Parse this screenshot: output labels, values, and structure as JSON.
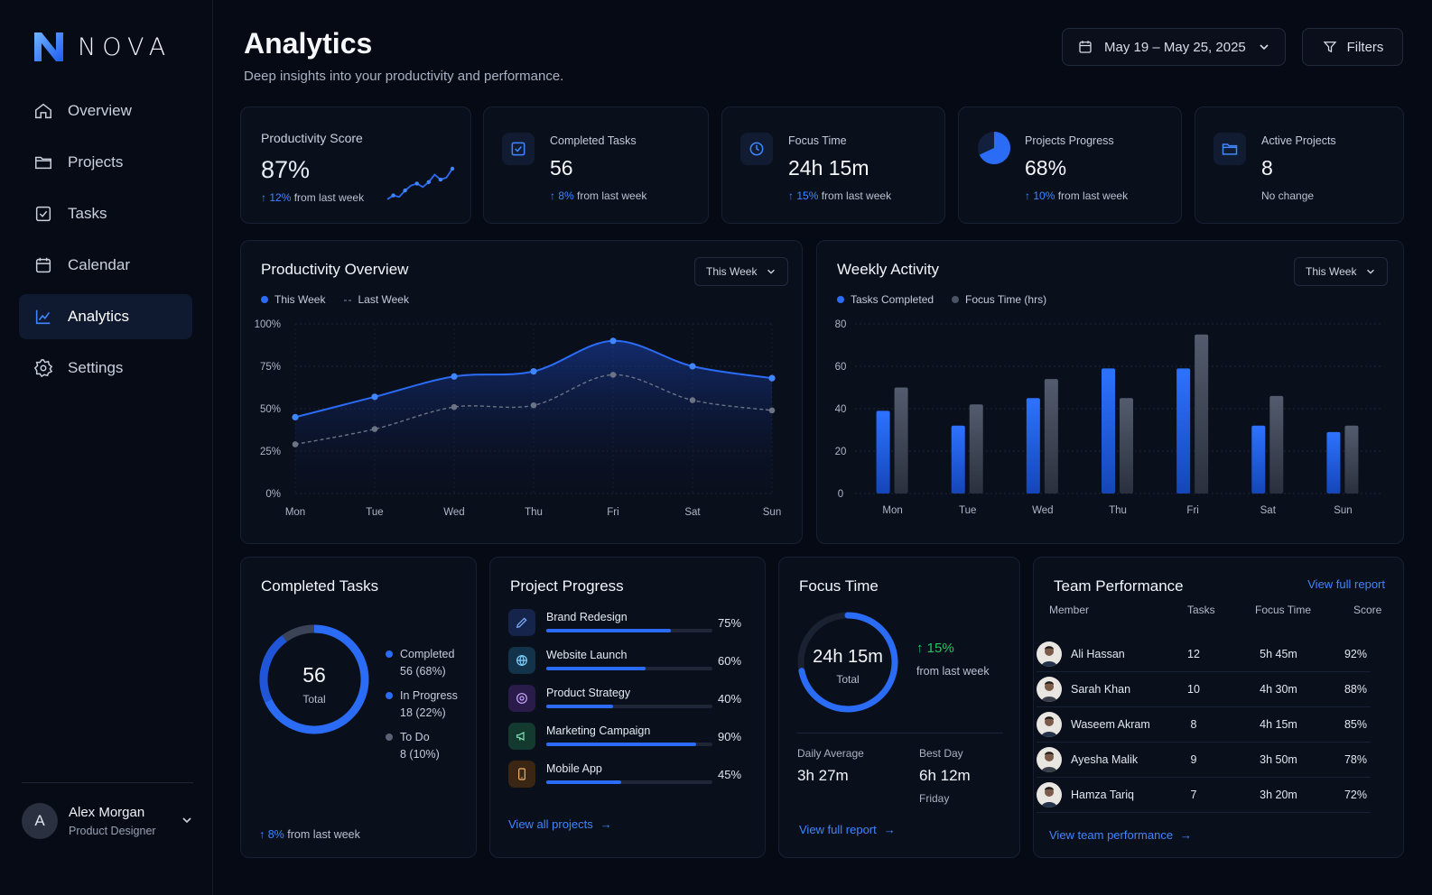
{
  "brand": {
    "name": "NOVA"
  },
  "nav": [
    {
      "label": "Overview",
      "icon": "home-icon"
    },
    {
      "label": "Projects",
      "icon": "folder-icon"
    },
    {
      "label": "Tasks",
      "icon": "checkbox-icon"
    },
    {
      "label": "Calendar",
      "icon": "calendar-icon"
    },
    {
      "label": "Analytics",
      "icon": "chart-line-icon",
      "active": true
    },
    {
      "label": "Settings",
      "icon": "gear-icon"
    }
  ],
  "user": {
    "initial": "A",
    "name": "Alex Morgan",
    "role": "Product Designer"
  },
  "header": {
    "title": "Analytics",
    "subtitle": "Deep insights into your productivity and performance.",
    "date_range": "May 19 – May 25, 2025",
    "filters_label": "Filters"
  },
  "kpis": [
    {
      "label": "Productivity Score",
      "value": "87%",
      "delta": "12%",
      "delta_text": "from last week",
      "sparkline": [
        20,
        28,
        25,
        38,
        48,
        52,
        45,
        55,
        70,
        60,
        64,
        82
      ]
    },
    {
      "label": "Completed Tasks",
      "value": "56",
      "delta": "8%",
      "delta_text": "from last week",
      "icon": "checkbox-icon"
    },
    {
      "label": "Focus Time",
      "value": "24h 15m",
      "delta": "15%",
      "delta_text": "from last week",
      "icon": "clock-icon"
    },
    {
      "label": "Projects Progress",
      "value": "68%",
      "delta": "10%",
      "delta_text": "from last week",
      "icon": "pie-icon",
      "progress": 0.68
    },
    {
      "label": "Active Projects",
      "value": "8",
      "note": "No change",
      "icon": "folder-icon"
    }
  ],
  "productivity_overview": {
    "title": "Productivity Overview",
    "selector": "This Week",
    "legend": [
      "This Week",
      "Last Week"
    ]
  },
  "weekly_activity": {
    "title": "Weekly Activity",
    "selector": "This Week",
    "legend": [
      "Tasks Completed",
      "Focus Time (hrs)"
    ]
  },
  "chart_data": [
    {
      "type": "line",
      "title": "Productivity Overview",
      "categories": [
        "Mon",
        "Tue",
        "Wed",
        "Thu",
        "Fri",
        "Sat",
        "Sun"
      ],
      "series": [
        {
          "name": "This Week",
          "values": [
            45,
            57,
            69,
            72,
            90,
            75,
            68
          ]
        },
        {
          "name": "Last Week",
          "values": [
            29,
            38,
            51,
            52,
            70,
            55,
            49
          ]
        }
      ],
      "ylim": [
        0,
        100
      ],
      "yticks": [
        "0%",
        "25%",
        "50%",
        "75%",
        "100%"
      ],
      "grid": true
    },
    {
      "type": "bar",
      "title": "Weekly Activity",
      "categories": [
        "Mon",
        "Tue",
        "Wed",
        "Thu",
        "Fri",
        "Sat",
        "Sun"
      ],
      "series": [
        {
          "name": "Tasks Completed",
          "values": [
            39,
            32,
            45,
            59,
            59,
            32,
            29
          ]
        },
        {
          "name": "Focus Time (hrs)",
          "values": [
            50,
            42,
            54,
            45,
            75,
            46,
            32
          ]
        }
      ],
      "ylim": [
        0,
        80
      ],
      "yticks": [
        "0",
        "20",
        "40",
        "60",
        "80"
      ],
      "grid": true
    },
    {
      "type": "pie",
      "title": "Completed Tasks",
      "center_value": "56",
      "center_label": "Total",
      "slices": [
        {
          "name": "Completed",
          "value": 68,
          "detail": "56 (68%)"
        },
        {
          "name": "In Progress",
          "value": 22,
          "detail": "18 (22%)"
        },
        {
          "name": "To Do",
          "value": 10,
          "detail": "8 (10%)"
        }
      ]
    }
  ],
  "completed_tasks": {
    "title": "Completed Tasks",
    "center_value": "56",
    "center_label": "Total",
    "legend": [
      {
        "name": "Completed",
        "detail": "56 (68%)"
      },
      {
        "name": "In Progress",
        "detail": "18 (22%)"
      },
      {
        "name": "To Do",
        "detail": "8 (10%)"
      }
    ],
    "delta": "8%",
    "delta_text": "from last week"
  },
  "project_progress": {
    "title": "Project Progress",
    "projects": [
      {
        "name": "Brand Redesign",
        "pct": "75%",
        "value": 0.75,
        "icon": "pen-icon"
      },
      {
        "name": "Website Launch",
        "pct": "60%",
        "value": 0.6,
        "icon": "globe-icon"
      },
      {
        "name": "Product Strategy",
        "pct": "40%",
        "value": 0.4,
        "icon": "target-icon"
      },
      {
        "name": "Marketing Campaign",
        "pct": "90%",
        "value": 0.9,
        "icon": "megaphone-icon"
      },
      {
        "name": "Mobile App",
        "pct": "45%",
        "value": 0.45,
        "icon": "phone-icon"
      }
    ],
    "link": "View all projects"
  },
  "focus_time": {
    "title": "Focus Time",
    "ring_value": "24h 15m",
    "ring_label": "Total",
    "ring_progress": 0.72,
    "delta": "15%",
    "delta_text": "from last week",
    "daily_avg_label": "Daily Average",
    "daily_avg_value": "3h 27m",
    "best_day_label": "Best Day",
    "best_day_value": "6h 12m",
    "best_day_name": "Friday",
    "link": "View full report"
  },
  "team_performance": {
    "title": "Team Performance",
    "top_link": "View full report",
    "headers": [
      "Member",
      "Tasks",
      "Focus Time",
      "Score"
    ],
    "rows": [
      {
        "name": "Ali Hassan",
        "tasks": "12",
        "focus": "5h 45m",
        "score": "92%"
      },
      {
        "name": "Sarah Khan",
        "tasks": "10",
        "focus": "4h 30m",
        "score": "88%"
      },
      {
        "name": "Waseem Akram",
        "tasks": "8",
        "focus": "4h 15m",
        "score": "85%"
      },
      {
        "name": "Ayesha Malik",
        "tasks": "9",
        "focus": "3h 50m",
        "score": "78%"
      },
      {
        "name": "Hamza Tariq",
        "tasks": "7",
        "focus": "3h 20m",
        "score": "72%"
      }
    ],
    "bottom_link": "View team performance"
  },
  "colors": {
    "accent": "#2b6cf6",
    "accent_light": "#3f86ff",
    "gray_series": "#4a5366",
    "positive": "#22c55e",
    "bg": "#060a14"
  }
}
